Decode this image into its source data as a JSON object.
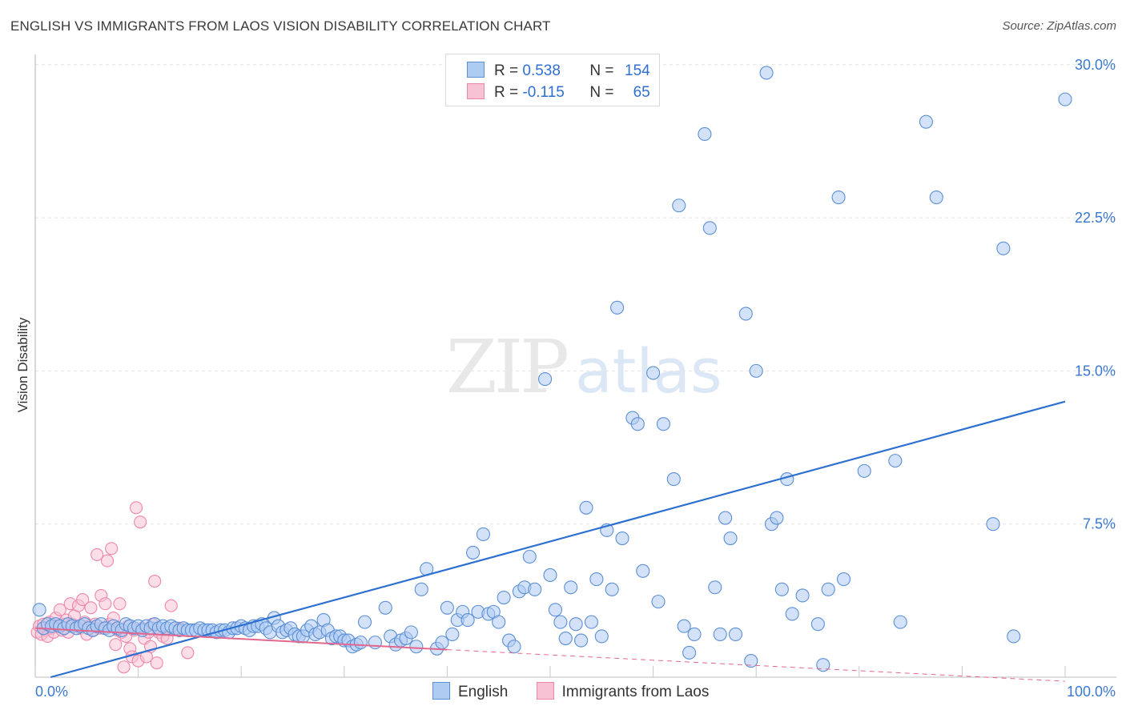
{
  "header": {
    "title": "ENGLISH VS IMMIGRANTS FROM LAOS VISION DISABILITY CORRELATION CHART",
    "source": "Source: ZipAtlas.com"
  },
  "watermark": {
    "zip": "ZIP",
    "atlas": "atlas"
  },
  "legend": {
    "rows": [
      {
        "r_label": "R = ",
        "r_value": "0.538",
        "n_label": "N = ",
        "n_value": "154"
      },
      {
        "r_label": "R = ",
        "r_value": "-0.115",
        "n_label": "N = ",
        "n_value": "65"
      }
    ]
  },
  "bottom_legend": {
    "items": [
      "English",
      "Immigrants from Laos"
    ]
  },
  "colors": {
    "blue_fill": "#aecbf2",
    "blue_stroke": "#5b8fd6",
    "blue_line": "#2e70d0",
    "pink_fill": "#f7c2d3",
    "pink_stroke": "#ee86a8",
    "pink_line": "#e2678f",
    "grid": "#e3e3e3",
    "tick_text": "#3a78d0"
  },
  "chart_data": {
    "type": "scatter",
    "title": "ENGLISH VS IMMIGRANTS FROM LAOS VISION DISABILITY CORRELATION CHART",
    "xlabel": "",
    "ylabel": "Vision Disability",
    "xlim": [
      0,
      100
    ],
    "ylim": [
      0,
      30.5
    ],
    "x_tick_labels": [
      "0.0%",
      "100.0%"
    ],
    "y_ticks": [
      7.5,
      15.0,
      22.5,
      30.0
    ],
    "y_tick_labels": [
      "7.5%",
      "15.0%",
      "22.5%",
      "30.0%"
    ],
    "grid": true,
    "legend_position": "top-center",
    "series": [
      {
        "name": "English",
        "trend": {
          "x": [
            1.5,
            100
          ],
          "y": [
            0.0,
            13.5
          ]
        },
        "points": [
          [
            0.4,
            3.3
          ],
          [
            0.8,
            2.4
          ],
          [
            1.2,
            2.6
          ],
          [
            1.6,
            2.5
          ],
          [
            2.0,
            2.6
          ],
          [
            2.4,
            2.5
          ],
          [
            2.8,
            2.4
          ],
          [
            3.2,
            2.6
          ],
          [
            3.6,
            2.5
          ],
          [
            4.0,
            2.4
          ],
          [
            4.4,
            2.5
          ],
          [
            4.8,
            2.6
          ],
          [
            5.2,
            2.4
          ],
          [
            5.6,
            2.3
          ],
          [
            6.0,
            2.5
          ],
          [
            6.4,
            2.6
          ],
          [
            6.8,
            2.4
          ],
          [
            7.2,
            2.3
          ],
          [
            7.6,
            2.5
          ],
          [
            8.0,
            2.4
          ],
          [
            8.4,
            2.3
          ],
          [
            8.8,
            2.6
          ],
          [
            9.2,
            2.5
          ],
          [
            9.6,
            2.4
          ],
          [
            10.0,
            2.5
          ],
          [
            10.4,
            2.3
          ],
          [
            10.8,
            2.5
          ],
          [
            11.2,
            2.4
          ],
          [
            11.6,
            2.6
          ],
          [
            12.0,
            2.4
          ],
          [
            12.4,
            2.5
          ],
          [
            12.8,
            2.4
          ],
          [
            13.2,
            2.5
          ],
          [
            13.6,
            2.4
          ],
          [
            14.0,
            2.3
          ],
          [
            14.4,
            2.4
          ],
          [
            14.8,
            2.3
          ],
          [
            15.2,
            2.3
          ],
          [
            15.6,
            2.3
          ],
          [
            16.0,
            2.4
          ],
          [
            16.4,
            2.3
          ],
          [
            16.8,
            2.3
          ],
          [
            17.2,
            2.3
          ],
          [
            17.6,
            2.2
          ],
          [
            18.0,
            2.3
          ],
          [
            18.4,
            2.3
          ],
          [
            18.8,
            2.2
          ],
          [
            19.2,
            2.4
          ],
          [
            19.6,
            2.4
          ],
          [
            20.0,
            2.5
          ],
          [
            20.4,
            2.4
          ],
          [
            20.8,
            2.3
          ],
          [
            21.2,
            2.5
          ],
          [
            21.6,
            2.5
          ],
          [
            22.0,
            2.6
          ],
          [
            22.4,
            2.4
          ],
          [
            22.8,
            2.2
          ],
          [
            23.2,
            2.9
          ],
          [
            23.6,
            2.5
          ],
          [
            24.0,
            2.2
          ],
          [
            24.4,
            2.3
          ],
          [
            24.8,
            2.4
          ],
          [
            25.2,
            2.1
          ],
          [
            25.6,
            2.0
          ],
          [
            26.0,
            2.0
          ],
          [
            26.4,
            2.3
          ],
          [
            26.8,
            2.5
          ],
          [
            27.2,
            2.1
          ],
          [
            27.6,
            2.2
          ],
          [
            28.0,
            2.8
          ],
          [
            28.4,
            2.3
          ],
          [
            28.8,
            1.9
          ],
          [
            29.2,
            2.0
          ],
          [
            29.6,
            2.0
          ],
          [
            30.0,
            1.8
          ],
          [
            30.4,
            1.8
          ],
          [
            30.8,
            1.5
          ],
          [
            31.2,
            1.6
          ],
          [
            31.6,
            1.7
          ],
          [
            32.0,
            2.7
          ],
          [
            33.0,
            1.7
          ],
          [
            34.0,
            3.4
          ],
          [
            34.5,
            2.0
          ],
          [
            35.0,
            1.6
          ],
          [
            35.5,
            1.8
          ],
          [
            36.0,
            1.9
          ],
          [
            36.5,
            2.2
          ],
          [
            37.0,
            1.5
          ],
          [
            37.5,
            4.3
          ],
          [
            38.0,
            5.3
          ],
          [
            39.0,
            1.4
          ],
          [
            39.5,
            1.7
          ],
          [
            40.0,
            3.4
          ],
          [
            40.5,
            2.1
          ],
          [
            41.0,
            2.8
          ],
          [
            41.5,
            3.2
          ],
          [
            42.0,
            2.8
          ],
          [
            42.5,
            6.1
          ],
          [
            43.0,
            3.2
          ],
          [
            43.5,
            7.0
          ],
          [
            44.0,
            3.1
          ],
          [
            44.5,
            3.2
          ],
          [
            45.0,
            2.7
          ],
          [
            45.5,
            3.9
          ],
          [
            46.0,
            1.8
          ],
          [
            46.5,
            1.5
          ],
          [
            47.0,
            4.2
          ],
          [
            47.5,
            4.4
          ],
          [
            48.0,
            5.9
          ],
          [
            48.5,
            4.3
          ],
          [
            49.5,
            14.6
          ],
          [
            50.0,
            5.0
          ],
          [
            50.5,
            3.3
          ],
          [
            51.0,
            2.7
          ],
          [
            51.5,
            1.9
          ],
          [
            52.0,
            4.4
          ],
          [
            52.5,
            2.6
          ],
          [
            53.0,
            1.8
          ],
          [
            53.5,
            8.3
          ],
          [
            54.0,
            2.7
          ],
          [
            54.5,
            4.8
          ],
          [
            55.0,
            2.0
          ],
          [
            55.5,
            7.2
          ],
          [
            56.0,
            4.3
          ],
          [
            56.5,
            18.1
          ],
          [
            57.0,
            6.8
          ],
          [
            58.0,
            12.7
          ],
          [
            58.5,
            12.4
          ],
          [
            59.0,
            5.2
          ],
          [
            60.0,
            14.9
          ],
          [
            60.5,
            3.7
          ],
          [
            61.0,
            12.4
          ],
          [
            62.0,
            9.7
          ],
          [
            62.5,
            23.1
          ],
          [
            63.0,
            2.5
          ],
          [
            63.5,
            1.2
          ],
          [
            64.0,
            2.1
          ],
          [
            65.0,
            26.6
          ],
          [
            65.5,
            22.0
          ],
          [
            66.0,
            4.4
          ],
          [
            66.5,
            2.1
          ],
          [
            67.0,
            7.8
          ],
          [
            67.5,
            6.8
          ],
          [
            68.0,
            2.1
          ],
          [
            69.0,
            17.8
          ],
          [
            69.5,
            0.8
          ],
          [
            70.0,
            15.0
          ],
          [
            71.0,
            29.6
          ],
          [
            71.5,
            7.5
          ],
          [
            72.0,
            7.8
          ],
          [
            72.5,
            4.3
          ],
          [
            73.0,
            9.7
          ],
          [
            73.5,
            3.1
          ],
          [
            74.5,
            4.0
          ],
          [
            76.0,
            2.6
          ],
          [
            76.5,
            0.6
          ],
          [
            77.0,
            4.3
          ],
          [
            78.0,
            23.5
          ],
          [
            78.5,
            4.8
          ],
          [
            80.5,
            10.1
          ],
          [
            83.5,
            10.6
          ],
          [
            84.0,
            2.7
          ],
          [
            86.5,
            27.2
          ],
          [
            87.5,
            23.5
          ],
          [
            93.0,
            7.5
          ],
          [
            94.0,
            21.0
          ],
          [
            95.0,
            2.0
          ],
          [
            100.0,
            28.3
          ]
        ]
      },
      {
        "name": "Immigrants from Laos",
        "trend": {
          "x": [
            0,
            40
          ],
          "y": [
            2.4,
            1.35
          ]
        },
        "trend_extension": {
          "x": [
            40,
            100
          ],
          "y": [
            1.35,
            -0.2
          ]
        },
        "points": [
          [
            0.2,
            2.2
          ],
          [
            0.4,
            2.5
          ],
          [
            0.6,
            2.1
          ],
          [
            0.8,
            2.6
          ],
          [
            1.0,
            2.3
          ],
          [
            1.2,
            2.0
          ],
          [
            1.4,
            2.7
          ],
          [
            1.6,
            2.4
          ],
          [
            1.8,
            2.2
          ],
          [
            2.0,
            2.9
          ],
          [
            2.2,
            2.5
          ],
          [
            2.4,
            3.3
          ],
          [
            2.6,
            2.3
          ],
          [
            2.8,
            2.6
          ],
          [
            3.0,
            2.8
          ],
          [
            3.2,
            2.2
          ],
          [
            3.4,
            3.6
          ],
          [
            3.6,
            2.6
          ],
          [
            3.8,
            3.0
          ],
          [
            4.0,
            2.5
          ],
          [
            4.2,
            3.5
          ],
          [
            4.4,
            2.4
          ],
          [
            4.6,
            3.8
          ],
          [
            4.8,
            2.7
          ],
          [
            5.0,
            2.1
          ],
          [
            5.2,
            2.5
          ],
          [
            5.4,
            3.4
          ],
          [
            5.6,
            2.3
          ],
          [
            5.8,
            2.6
          ],
          [
            6.0,
            6.0
          ],
          [
            6.2,
            2.4
          ],
          [
            6.4,
            4.0
          ],
          [
            6.6,
            2.4
          ],
          [
            6.8,
            3.6
          ],
          [
            7.0,
            5.7
          ],
          [
            7.2,
            2.6
          ],
          [
            7.4,
            6.3
          ],
          [
            7.6,
            2.9
          ],
          [
            7.8,
            1.6
          ],
          [
            8.0,
            2.3
          ],
          [
            8.2,
            3.6
          ],
          [
            8.4,
            2.2
          ],
          [
            8.6,
            0.5
          ],
          [
            8.8,
            2.0
          ],
          [
            9.0,
            2.5
          ],
          [
            9.2,
            1.4
          ],
          [
            9.4,
            1.0
          ],
          [
            9.6,
            2.3
          ],
          [
            9.8,
            8.3
          ],
          [
            10.0,
            0.8
          ],
          [
            10.2,
            7.6
          ],
          [
            10.4,
            2.4
          ],
          [
            10.6,
            1.9
          ],
          [
            10.8,
            1.0
          ],
          [
            11.0,
            2.2
          ],
          [
            11.2,
            1.5
          ],
          [
            11.4,
            2.6
          ],
          [
            11.6,
            4.7
          ],
          [
            11.8,
            0.7
          ],
          [
            12.0,
            2.2
          ],
          [
            12.4,
            2.0
          ],
          [
            12.8,
            1.9
          ],
          [
            13.2,
            3.5
          ],
          [
            14.0,
            2.4
          ],
          [
            14.8,
            1.2
          ]
        ]
      }
    ]
  }
}
